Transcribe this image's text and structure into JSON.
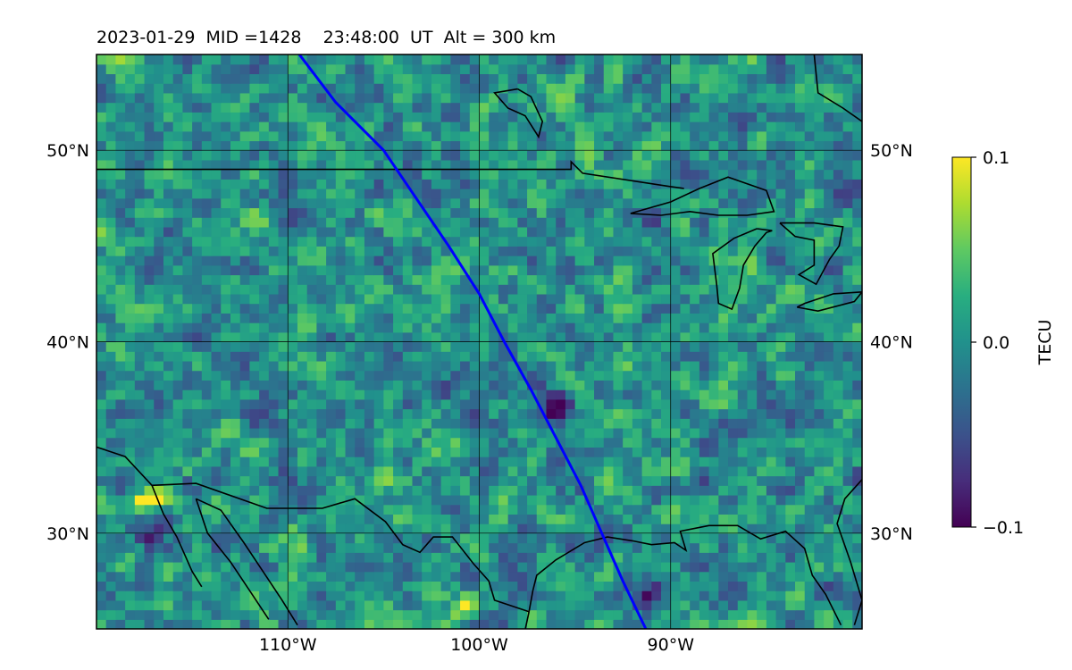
{
  "chart_data": {
    "type": "heatmap",
    "title": "2023-01-29  MID =1428    23:48:00  UT  Alt = 300 km",
    "map": {
      "lon_range": [
        -120,
        -80
      ],
      "lat_range": [
        25,
        55
      ],
      "grid_lons": [
        -110,
        -100,
        -90
      ],
      "grid_lats": [
        30,
        40,
        50
      ],
      "x_tick_labels": [
        "110°W",
        "100°W",
        "90°W"
      ],
      "y_tick_labels": [
        "30°N",
        "40°N",
        "50°N"
      ],
      "grid": true
    },
    "colorbar": {
      "label": "TECU",
      "colormap": "viridis",
      "vmin": -0.1,
      "vmax": 0.1,
      "tick_labels": [
        "0.1",
        "0.0",
        "−0.1"
      ],
      "tick_values": [
        0.1,
        0.0,
        -0.1
      ]
    },
    "field": {
      "description_values": "perturbation mostly between -0.04 and 0.04 TECU",
      "hotspots": [
        {
          "lon": -117.8,
          "lat": 31.5,
          "value": 0.1
        },
        {
          "lon": -116.8,
          "lat": 32.0,
          "value": 0.08
        },
        {
          "lon": -117.0,
          "lat": 29.6,
          "value": -0.09
        },
        {
          "lon": -96.0,
          "lat": 36.6,
          "value": -0.08
        },
        {
          "lon": -91.0,
          "lat": 26.5,
          "value": -0.07
        },
        {
          "lon": -101.0,
          "lat": 26.2,
          "value": 0.07
        },
        {
          "lon": -102.0,
          "lat": 34.7,
          "value": 0.05
        }
      ]
    },
    "series": [
      {
        "type": "track",
        "color": "#0000ff",
        "points": [
          [
            -109.4,
            55.0
          ],
          [
            -107.5,
            52.5
          ],
          [
            -105.0,
            50.0
          ],
          [
            -103.3,
            47.5
          ],
          [
            -101.6,
            45.0
          ],
          [
            -100.0,
            42.5
          ],
          [
            -98.7,
            40.0
          ],
          [
            -97.3,
            37.5
          ],
          [
            -96.0,
            35.0
          ],
          [
            -94.7,
            32.5
          ],
          [
            -93.6,
            30.0
          ],
          [
            -92.5,
            27.5
          ],
          [
            -91.3,
            25.0
          ]
        ]
      }
    ],
    "coastlines": [
      {
        "name": "us-canada-border",
        "points": [
          [
            -120,
            49
          ],
          [
            -95.2,
            49
          ],
          [
            -95.2,
            49.4
          ],
          [
            -94.6,
            48.8
          ],
          [
            -90,
            48.1
          ],
          [
            -89.3,
            48.0
          ]
        ]
      },
      {
        "name": "lake-superior",
        "points": [
          [
            -92.1,
            46.7
          ],
          [
            -90,
            47.3
          ],
          [
            -88.5,
            48.0
          ],
          [
            -87,
            48.6
          ],
          [
            -85,
            47.9
          ],
          [
            -84.6,
            46.8
          ],
          [
            -86,
            46.6
          ],
          [
            -87.5,
            46.6
          ],
          [
            -89,
            46.8
          ],
          [
            -90.5,
            46.6
          ],
          [
            -92.1,
            46.7
          ]
        ]
      },
      {
        "name": "lake-michigan",
        "points": [
          [
            -85.5,
            45.9
          ],
          [
            -86.7,
            45.4
          ],
          [
            -87.8,
            44.6
          ],
          [
            -87.6,
            43.0
          ],
          [
            -87.5,
            42.0
          ],
          [
            -86.8,
            41.7
          ],
          [
            -86.4,
            42.8
          ],
          [
            -86.2,
            44.0
          ],
          [
            -85.6,
            45.0
          ],
          [
            -85.0,
            45.7
          ],
          [
            -84.7,
            45.8
          ],
          [
            -85.5,
            45.9
          ]
        ]
      },
      {
        "name": "lake-huron",
        "points": [
          [
            -84.3,
            46.2
          ],
          [
            -83.5,
            45.5
          ],
          [
            -82.5,
            45.3
          ],
          [
            -82.5,
            44.0
          ],
          [
            -83.3,
            43.5
          ],
          [
            -82.4,
            43.0
          ],
          [
            -81.7,
            44.3
          ],
          [
            -81.2,
            45.0
          ],
          [
            -81.0,
            46.0
          ],
          [
            -82.5,
            46.2
          ],
          [
            -84.3,
            46.2
          ]
        ]
      },
      {
        "name": "lake-erie",
        "points": [
          [
            -83.4,
            41.8
          ],
          [
            -82.3,
            41.6
          ],
          [
            -80.4,
            42.1
          ],
          [
            -80.0,
            42.6
          ],
          [
            -81.5,
            42.5
          ],
          [
            -83.0,
            42.0
          ],
          [
            -83.4,
            41.8
          ]
        ]
      },
      {
        "name": "gulf-coast",
        "points": [
          [
            -97.4,
            25.9
          ],
          [
            -97.2,
            27.0
          ],
          [
            -97.0,
            27.8
          ],
          [
            -96.0,
            28.6
          ],
          [
            -94.5,
            29.5
          ],
          [
            -93.3,
            29.8
          ],
          [
            -92.0,
            29.6
          ],
          [
            -91.0,
            29.4
          ],
          [
            -89.8,
            29.5
          ],
          [
            -89.2,
            29.1
          ],
          [
            -89.5,
            30.1
          ],
          [
            -88.0,
            30.4
          ],
          [
            -86.5,
            30.4
          ],
          [
            -85.3,
            29.7
          ],
          [
            -84.0,
            30.1
          ],
          [
            -83.0,
            29.2
          ],
          [
            -82.6,
            27.8
          ],
          [
            -81.9,
            26.8
          ],
          [
            -81.1,
            25.2
          ]
        ]
      },
      {
        "name": "mexico-coast",
        "points": [
          [
            -97.4,
            25.9
          ],
          [
            -97.7,
            24.5
          ],
          [
            -97.8,
            22.5
          ]
        ]
      },
      {
        "name": "us-mexico-border",
        "points": [
          [
            -117.1,
            32.5
          ],
          [
            -114.8,
            32.6
          ],
          [
            -111.1,
            31.3
          ],
          [
            -108.2,
            31.3
          ],
          [
            -106.5,
            31.8
          ],
          [
            -104.9,
            30.6
          ],
          [
            -104.0,
            29.4
          ],
          [
            -103.1,
            29.0
          ],
          [
            -102.4,
            29.8
          ],
          [
            -101.4,
            29.8
          ],
          [
            -100.3,
            28.4
          ],
          [
            -99.5,
            27.5
          ],
          [
            -99.2,
            26.5
          ],
          [
            -97.4,
            25.9
          ]
        ]
      },
      {
        "name": "baja-gulf-west",
        "points": [
          [
            -114.8,
            31.8
          ],
          [
            -114.2,
            30.0
          ],
          [
            -113.0,
            28.5
          ],
          [
            -112.0,
            27.0
          ],
          [
            -111.0,
            25.5
          ]
        ]
      },
      {
        "name": "baja-gulf-east",
        "points": [
          [
            -114.8,
            31.8
          ],
          [
            -113.5,
            31.2
          ],
          [
            -112.3,
            29.5
          ],
          [
            -111.3,
            28.0
          ],
          [
            -110.3,
            26.5
          ],
          [
            -109.5,
            25.2
          ]
        ]
      },
      {
        "name": "pacific-coast",
        "points": [
          [
            -120,
            34.5
          ],
          [
            -118.5,
            34.0
          ],
          [
            -117.1,
            32.5
          ],
          [
            -116.5,
            31.0
          ],
          [
            -115.8,
            29.8
          ],
          [
            -115.0,
            28.0
          ],
          [
            -114.5,
            27.2
          ]
        ]
      },
      {
        "name": "hudson-bay-islands",
        "points": [
          [
            -98.0,
            53.2
          ],
          [
            -99.2,
            53.0
          ],
          [
            -98.5,
            52.2
          ],
          [
            -97.6,
            51.8
          ],
          [
            -96.9,
            50.7
          ],
          [
            -96.7,
            51.5
          ],
          [
            -97.3,
            52.8
          ],
          [
            -98.0,
            53.2
          ]
        ]
      },
      {
        "name": "hudson-bay-coast",
        "points": [
          [
            -82.5,
            55.0
          ],
          [
            -82.3,
            53.0
          ],
          [
            -81.0,
            52.2
          ],
          [
            -80.0,
            51.5
          ]
        ]
      },
      {
        "name": "east-coast",
        "points": [
          [
            -80.0,
            32.8
          ],
          [
            -80.9,
            31.8
          ],
          [
            -81.3,
            30.5
          ],
          [
            -80.6,
            28.5
          ],
          [
            -80.0,
            26.5
          ],
          [
            -80.4,
            25.2
          ]
        ]
      }
    ]
  }
}
